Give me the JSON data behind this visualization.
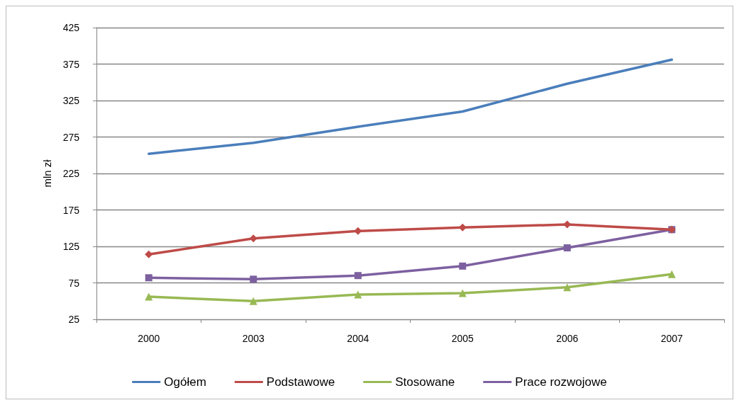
{
  "chart_data": {
    "type": "line",
    "ylabel": "mln zł",
    "categories": [
      "2000",
      "2003",
      "2004",
      "2005",
      "2006",
      "2007"
    ],
    "series": [
      {
        "name": "Ogółem",
        "color": "#4a7ebb",
        "marker": "none",
        "values": [
          252,
          267,
          289,
          310,
          348,
          381
        ]
      },
      {
        "name": "Podstawowe",
        "color": "#be4b48",
        "marker": "diamond",
        "values": [
          114,
          136,
          146,
          151,
          155,
          148
        ]
      },
      {
        "name": "Stosowane",
        "color": "#98b954",
        "marker": "triangle",
        "values": [
          56,
          50,
          59,
          61,
          69,
          87
        ]
      },
      {
        "name": "Prace rozwojowe",
        "color": "#7d60a0",
        "marker": "square",
        "values": [
          82,
          80,
          85,
          98,
          123,
          148
        ]
      }
    ],
    "ylim": [
      25,
      425
    ],
    "yticks": [
      25,
      75,
      125,
      175,
      225,
      275,
      325,
      375,
      425
    ],
    "grid": "y",
    "legend": "bottom",
    "line_style": "solid"
  }
}
